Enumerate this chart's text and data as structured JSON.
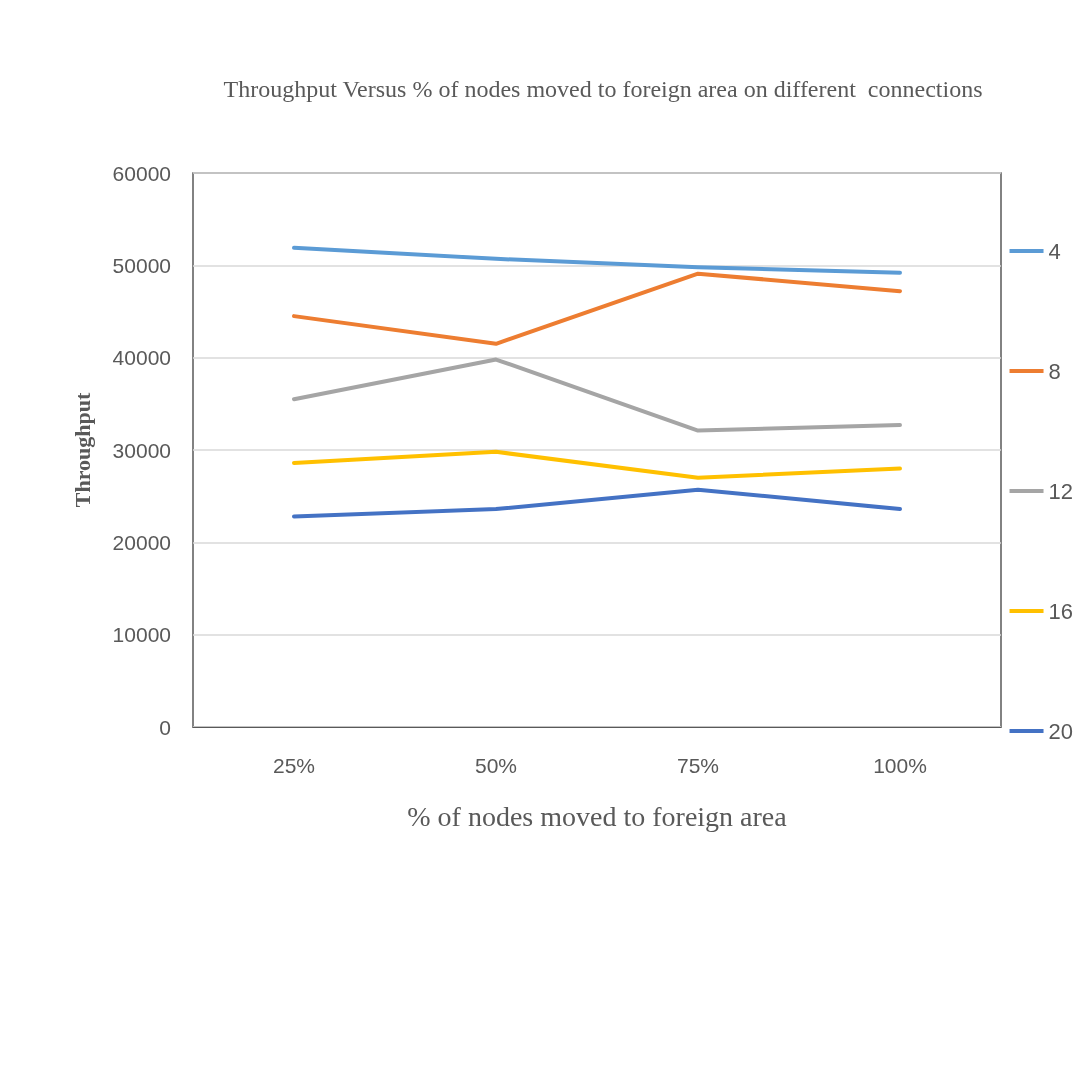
{
  "chart_data": {
    "type": "line",
    "title": "Throughput Versus % of nodes moved to foreign area on different  connections",
    "xlabel": "% of nodes moved to foreign area",
    "ylabel": "Throughput",
    "categories": [
      "25%",
      "50%",
      "75%",
      "100%"
    ],
    "series": [
      {
        "name": "4",
        "color": "#5b9bd5",
        "values": [
          51900,
          50700,
          49800,
          49200
        ]
      },
      {
        "name": "8",
        "color": "#ed7d31",
        "values": [
          44500,
          41500,
          49100,
          47200
        ]
      },
      {
        "name": "12",
        "color": "#a5a5a5",
        "values": [
          35500,
          39800,
          32100,
          32700
        ]
      },
      {
        "name": "16",
        "color": "#ffc000",
        "values": [
          28600,
          29800,
          27000,
          28000
        ]
      },
      {
        "name": "20",
        "color": "#4472c4",
        "values": [
          22800,
          23600,
          25700,
          23600
        ]
      }
    ],
    "ylim": [
      0,
      60000
    ],
    "yticks": [
      0,
      10000,
      20000,
      30000,
      40000,
      50000,
      60000
    ],
    "grid": "y",
    "legend": "right",
    "marker": "none",
    "line_style": "solid"
  }
}
